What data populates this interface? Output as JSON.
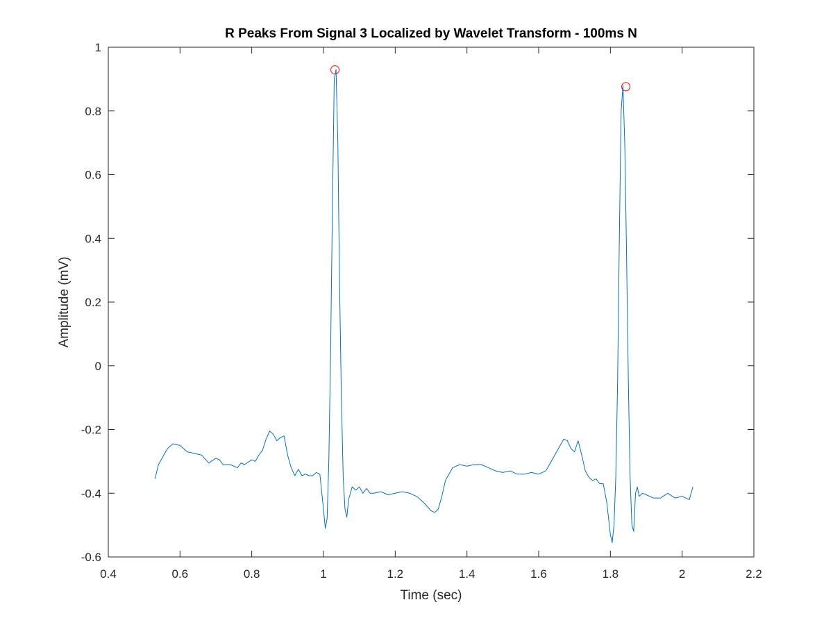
{
  "chart_data": {
    "type": "line",
    "title": "R Peaks From Signal 3 Localized by Wavelet Transform - 100ms N",
    "xlabel": "Time (sec)",
    "ylabel": "Amplitude (mV)",
    "xlim": [
      0.4,
      2.2
    ],
    "ylim": [
      -0.6,
      1.0
    ],
    "xticks": [
      0.4,
      0.6,
      0.8,
      1.0,
      1.2,
      1.4,
      1.6,
      1.8,
      2.0,
      2.2
    ],
    "xtick_labels": [
      "0.4",
      "0.6",
      "0.8",
      "1",
      "1.2",
      "1.4",
      "1.6",
      "1.8",
      "2",
      "2.2"
    ],
    "yticks": [
      -0.6,
      -0.4,
      -0.2,
      0,
      0.2,
      0.4,
      0.6,
      0.8,
      1.0
    ],
    "ytick_labels": [
      "-0.6",
      "-0.4",
      "-0.2",
      "0",
      "0.2",
      "0.4",
      "0.6",
      "0.8",
      "1"
    ],
    "grid": false,
    "box": true,
    "series": [
      {
        "style": "line",
        "color": "#0072BD",
        "x": [
          0.53,
          0.54,
          0.55,
          0.565,
          0.58,
          0.6,
          0.62,
          0.64,
          0.66,
          0.68,
          0.7,
          0.71,
          0.72,
          0.74,
          0.76,
          0.77,
          0.78,
          0.8,
          0.81,
          0.82,
          0.83,
          0.84,
          0.85,
          0.86,
          0.87,
          0.88,
          0.89,
          0.9,
          0.91,
          0.92,
          0.93,
          0.94,
          0.95,
          0.96,
          0.97,
          0.98,
          0.99,
          1.0,
          1.005,
          1.01,
          1.015,
          1.02,
          1.025,
          1.03,
          1.035,
          1.04,
          1.045,
          1.05,
          1.055,
          1.06,
          1.065,
          1.07,
          1.08,
          1.09,
          1.1,
          1.11,
          1.12,
          1.13,
          1.14,
          1.16,
          1.18,
          1.2,
          1.22,
          1.24,
          1.26,
          1.28,
          1.3,
          1.31,
          1.32,
          1.33,
          1.34,
          1.36,
          1.38,
          1.4,
          1.42,
          1.44,
          1.46,
          1.48,
          1.5,
          1.52,
          1.54,
          1.56,
          1.58,
          1.6,
          1.62,
          1.64,
          1.66,
          1.67,
          1.68,
          1.69,
          1.7,
          1.71,
          1.72,
          1.73,
          1.74,
          1.75,
          1.76,
          1.77,
          1.78,
          1.79,
          1.8,
          1.805,
          1.81,
          1.815,
          1.82,
          1.825,
          1.83,
          1.835,
          1.84,
          1.845,
          1.85,
          1.855,
          1.86,
          1.865,
          1.87,
          1.875,
          1.88,
          1.89,
          1.9,
          1.92,
          1.94,
          1.96,
          1.98,
          2.0,
          2.02,
          2.03
        ],
        "y": [
          -0.355,
          -0.31,
          -0.29,
          -0.26,
          -0.245,
          -0.25,
          -0.27,
          -0.275,
          -0.28,
          -0.305,
          -0.29,
          -0.295,
          -0.31,
          -0.31,
          -0.32,
          -0.305,
          -0.31,
          -0.295,
          -0.3,
          -0.28,
          -0.265,
          -0.23,
          -0.205,
          -0.215,
          -0.235,
          -0.225,
          -0.22,
          -0.28,
          -0.32,
          -0.345,
          -0.325,
          -0.345,
          -0.34,
          -0.345,
          -0.345,
          -0.335,
          -0.34,
          -0.45,
          -0.51,
          -0.48,
          -0.3,
          0.05,
          0.5,
          0.9,
          0.93,
          0.7,
          0.25,
          -0.1,
          -0.35,
          -0.45,
          -0.475,
          -0.42,
          -0.38,
          -0.39,
          -0.38,
          -0.4,
          -0.385,
          -0.4,
          -0.4,
          -0.395,
          -0.405,
          -0.4,
          -0.395,
          -0.4,
          -0.41,
          -0.43,
          -0.455,
          -0.46,
          -0.45,
          -0.41,
          -0.36,
          -0.32,
          -0.31,
          -0.315,
          -0.31,
          -0.31,
          -0.32,
          -0.33,
          -0.335,
          -0.33,
          -0.34,
          -0.34,
          -0.335,
          -0.34,
          -0.33,
          -0.29,
          -0.25,
          -0.23,
          -0.235,
          -0.26,
          -0.27,
          -0.235,
          -0.28,
          -0.33,
          -0.35,
          -0.36,
          -0.355,
          -0.37,
          -0.37,
          -0.43,
          -0.53,
          -0.555,
          -0.5,
          -0.35,
          -0.05,
          0.4,
          0.8,
          0.88,
          0.7,
          0.35,
          -0.05,
          -0.35,
          -0.5,
          -0.52,
          -0.4,
          -0.38,
          -0.41,
          -0.4,
          -0.405,
          -0.415,
          -0.415,
          -0.4,
          -0.415,
          -0.41,
          -0.42,
          -0.38
        ]
      },
      {
        "style": "marker",
        "marker": "circle",
        "color": "#FF0000",
        "x": [
          1.032,
          1.843
        ],
        "y": [
          0.929,
          0.876
        ]
      }
    ]
  }
}
